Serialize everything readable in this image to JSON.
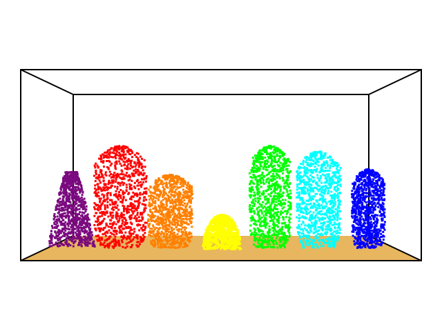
{
  "scene": {
    "background": "#ffffff",
    "floor_color": "#e8b65e",
    "frame_color": "#000000",
    "objects": [
      {
        "name": "purple-cone-plant",
        "color": "#7a0a7f"
      },
      {
        "name": "red-tall-plant",
        "color": "#ff0000"
      },
      {
        "name": "orange-plant",
        "color": "#ff8000"
      },
      {
        "name": "yellow-dome-plant",
        "color": "#ffff00"
      },
      {
        "name": "green-tall-plant",
        "color": "#00ff00"
      },
      {
        "name": "cyan-tall-plant",
        "color": "#00ffff"
      },
      {
        "name": "blue-plant",
        "color": "#0000ff"
      }
    ]
  }
}
